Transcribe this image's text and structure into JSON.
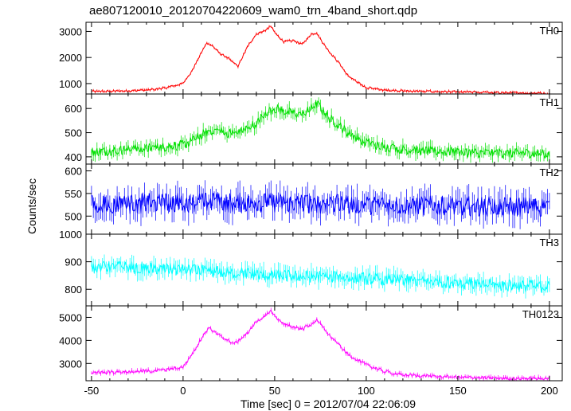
{
  "chart_data": {
    "type": "line",
    "title": "ae807120010_20120704220609_wam0_trn_4band_short.qdp",
    "xlabel": "Time [sec] 0 = 2012/07/04 22:06:09",
    "ylabel": "Counts/sec",
    "xlim": [
      -53,
      207
    ],
    "x_ticks": [
      -50,
      0,
      50,
      100,
      150,
      200
    ],
    "grid": false,
    "panels": [
      {
        "name": "TH0",
        "color": "#ff0000",
        "ylim": [
          600,
          3350
        ],
        "y_ticks": [
          1000,
          2000,
          3000
        ],
        "x": [
          -50,
          -40,
          -30,
          -20,
          -10,
          0,
          5,
          10,
          13,
          16,
          20,
          25,
          30,
          35,
          40,
          45,
          48,
          50,
          55,
          60,
          65,
          70,
          73,
          76,
          80,
          85,
          90,
          95,
          100,
          110,
          120,
          130,
          150,
          170,
          190,
          200
        ],
        "values": [
          700,
          700,
          720,
          750,
          830,
          1000,
          1500,
          2200,
          2550,
          2450,
          2150,
          1950,
          1650,
          2400,
          2900,
          3050,
          3200,
          2950,
          2600,
          2650,
          2500,
          2900,
          2950,
          2600,
          2200,
          1800,
          1300,
          1050,
          850,
          750,
          720,
          700,
          680,
          650,
          640,
          620
        ],
        "noise": 40
      },
      {
        "name": "TH1",
        "color": "#00e000",
        "ylim": [
          370,
          660
        ],
        "y_ticks": [
          400,
          500,
          600
        ],
        "x": [
          -50,
          -40,
          -30,
          -20,
          -10,
          0,
          5,
          10,
          15,
          20,
          25,
          30,
          40,
          45,
          50,
          55,
          60,
          65,
          70,
          73,
          76,
          80,
          85,
          90,
          95,
          100,
          110,
          130,
          150,
          170,
          190,
          200
        ],
        "values": [
          420,
          425,
          430,
          435,
          440,
          450,
          465,
          490,
          510,
          505,
          500,
          495,
          540,
          580,
          600,
          590,
          580,
          570,
          600,
          620,
          590,
          560,
          530,
          500,
          480,
          460,
          440,
          425,
          420,
          415,
          415,
          410
        ],
        "noise": 20
      },
      {
        "name": "TH2",
        "color": "#0000ff",
        "ylim": [
          460,
          615
        ],
        "y_ticks": [
          500,
          550,
          600
        ],
        "x": [
          -50,
          0,
          50,
          100,
          150,
          200
        ],
        "values": [
          525,
          530,
          530,
          525,
          522,
          520
        ],
        "noise": 22
      },
      {
        "name": "TH3",
        "color": "#00ffff",
        "ylim": [
          740,
          1000
        ],
        "y_ticks": [
          800,
          900,
          1000
        ],
        "x": [
          -50,
          -30,
          0,
          30,
          50,
          80,
          100,
          130,
          150,
          170,
          200
        ],
        "values": [
          880,
          880,
          870,
          860,
          850,
          845,
          840,
          830,
          825,
          815,
          810
        ],
        "noise": 22
      },
      {
        "name": "TH0123",
        "color": "#ff00ff",
        "ylim": [
          2250,
          5500
        ],
        "y_ticks": [
          3000,
          4000,
          5000
        ],
        "x": [
          -50,
          -30,
          -10,
          0,
          5,
          10,
          14,
          18,
          22,
          28,
          35,
          40,
          45,
          48,
          50,
          55,
          60,
          65,
          70,
          73,
          76,
          80,
          85,
          90,
          100,
          110,
          120,
          150,
          180,
          200
        ],
        "values": [
          2600,
          2650,
          2700,
          2850,
          3400,
          4100,
          4550,
          4300,
          4100,
          3850,
          4300,
          4800,
          5050,
          5300,
          5050,
          4700,
          4600,
          4500,
          4700,
          4900,
          4600,
          4200,
          3800,
          3400,
          2950,
          2650,
          2500,
          2400,
          2350,
          2350
        ],
        "noise": 70
      }
    ]
  }
}
